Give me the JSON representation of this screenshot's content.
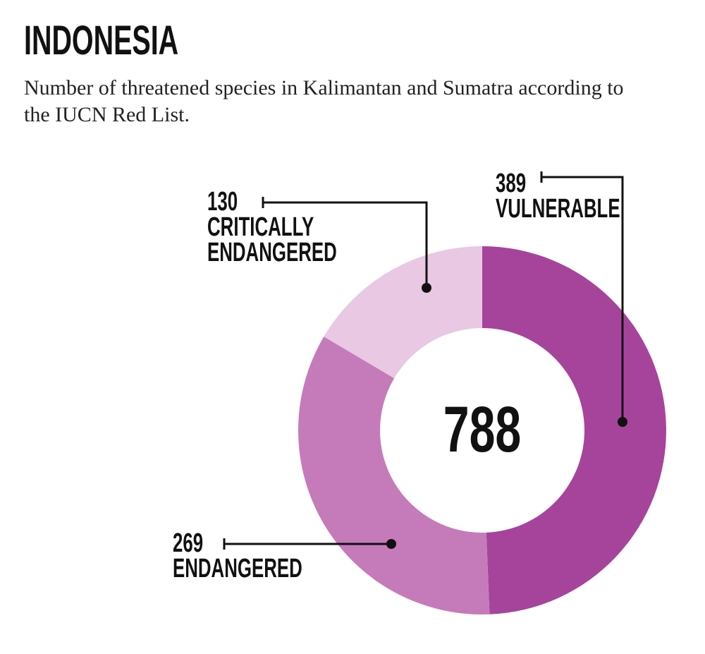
{
  "chart_data": {
    "type": "pie",
    "donut": true,
    "title": "INDONESIA",
    "subtitle": "Number of threatened species in Kalimantan and Sumatra according to the IUCN Red List.",
    "categories": [
      "VULNERABLE",
      "ENDANGERED",
      "CRITICALLY ENDANGERED"
    ],
    "values": [
      389,
      269,
      130
    ],
    "colors": [
      "#a6449b",
      "#c57bba",
      "#e8c8e2"
    ],
    "total": 788
  }
}
